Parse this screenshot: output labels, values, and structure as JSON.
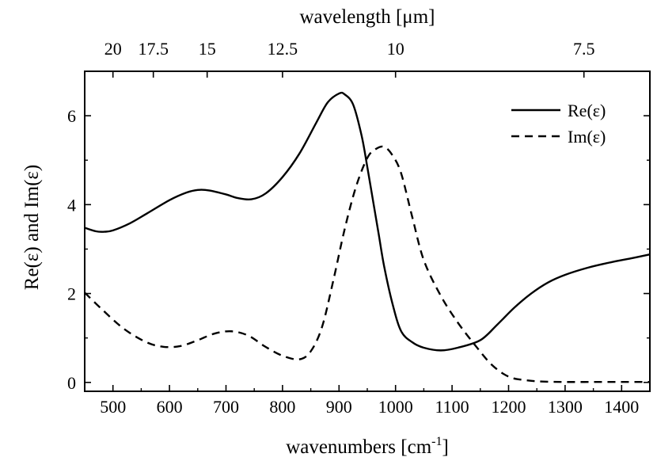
{
  "chart_data": {
    "type": "line",
    "title": "",
    "xlabel": "wavenumbers [cm",
    "xlabel_sup": "-1",
    "xlabel_end": "]",
    "ylabel": "Re(ε) and Im(ε)",
    "top_xlabel": "wavelength [μm]",
    "xlim": [
      450,
      1450
    ],
    "ylim": [
      -0.2,
      7.0
    ],
    "x_ticks": [
      500,
      600,
      700,
      800,
      900,
      1000,
      1100,
      1200,
      1300,
      1400,
      1450
    ],
    "x_tick_labels": [
      "500",
      "600",
      "700",
      "800",
      "900",
      "1000",
      "1100",
      "1200",
      "1300",
      "1400"
    ],
    "y_ticks": [
      0,
      2,
      4,
      6
    ],
    "y_tick_labels": [
      "0",
      "2",
      "4",
      "6"
    ],
    "top_ticks_um": [
      20,
      17.5,
      15,
      12.5,
      10,
      7.5
    ],
    "top_tick_labels": [
      "20",
      "17.5",
      "15",
      "12.5",
      "10",
      "7.5"
    ],
    "legend_position": "top-right",
    "series": [
      {
        "name": "Re(ε)",
        "style": "solid",
        "color": "#000000",
        "x": [
          450,
          470,
          485,
          500,
          530,
          560,
          600,
          630,
          650,
          670,
          700,
          720,
          745,
          770,
          800,
          830,
          860,
          880,
          900,
          910,
          925,
          940,
          950,
          960,
          970,
          980,
          995,
          1010,
          1030,
          1050,
          1080,
          1110,
          1150,
          1180,
          1210,
          1240,
          1270,
          1300,
          1340,
          1380,
          1420,
          1450
        ],
        "y": [
          3.48,
          3.4,
          3.39,
          3.42,
          3.58,
          3.8,
          4.1,
          4.27,
          4.33,
          4.32,
          4.23,
          4.15,
          4.12,
          4.25,
          4.62,
          5.15,
          5.85,
          6.3,
          6.5,
          6.48,
          6.25,
          5.55,
          4.85,
          4.1,
          3.35,
          2.6,
          1.75,
          1.15,
          0.9,
          0.78,
          0.72,
          0.78,
          0.95,
          1.3,
          1.68,
          2.0,
          2.25,
          2.42,
          2.58,
          2.7,
          2.8,
          2.88
        ]
      },
      {
        "name": "Im(ε)",
        "style": "dashed",
        "color": "#000000",
        "x": [
          450,
          480,
          520,
          560,
          590,
          620,
          650,
          680,
          710,
          740,
          770,
          800,
          830,
          850,
          870,
          890,
          910,
          930,
          950,
          965,
          980,
          995,
          1010,
          1030,
          1050,
          1080,
          1110,
          1140,
          1170,
          1200,
          1230,
          1260,
          1300,
          1350,
          1400,
          1450
        ],
        "y": [
          2.02,
          1.65,
          1.2,
          0.9,
          0.8,
          0.82,
          0.95,
          1.1,
          1.15,
          1.05,
          0.8,
          0.6,
          0.52,
          0.7,
          1.25,
          2.3,
          3.45,
          4.4,
          5.05,
          5.25,
          5.3,
          5.1,
          4.7,
          3.7,
          2.75,
          1.95,
          1.35,
          0.85,
          0.4,
          0.13,
          0.05,
          0.02,
          0.01,
          0.01,
          0.01,
          0.01
        ]
      }
    ]
  }
}
